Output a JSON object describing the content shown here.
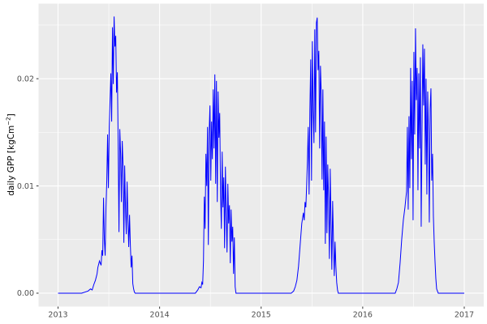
{
  "figure": {
    "ylabel_prefix": "daily GPP [kgCm",
    "ylabel_sup": "−2",
    "ylabel_suffix": "]"
  },
  "chart_data": {
    "type": "line",
    "title": "",
    "xlabel": "",
    "ylabel": "daily GPP [kgCm^-2]",
    "legend": "none",
    "grid": "major+minor",
    "panel_bg": "#EBEBEB",
    "grid_color": "#FFFFFF",
    "line_color": "#0000FF",
    "tick_mark_color": "#333333",
    "tick_label_color": "#4D4D4D",
    "xlim": [
      2012.808,
      2017.192
    ],
    "ylim": [
      -0.00125,
      0.027
    ],
    "x_ticks": {
      "values": [
        2013,
        2014,
        2015,
        2016,
        2017
      ],
      "labels": [
        "2013",
        "2014",
        "2015",
        "2016",
        "2017"
      ]
    },
    "y_ticks": {
      "values": [
        0,
        0.01,
        0.02
      ],
      "labels": [
        "0.00",
        "0.01",
        "0.02"
      ]
    },
    "x_minor": [
      2013.5,
      2014.5,
      2015.5,
      2016.5
    ],
    "y_minor": [
      0.005,
      0.015,
      0.025
    ],
    "series": [
      {
        "name": "daily GPP",
        "points": [
          [
            2013.0,
            0
          ],
          [
            2013.232,
            0
          ],
          [
            2013.296,
            0.0002
          ],
          [
            2013.32,
            0.0004
          ],
          [
            2013.336,
            0.0003
          ],
          [
            2013.352,
            0.0008
          ],
          [
            2013.368,
            0.0012
          ],
          [
            2013.384,
            0.0018
          ],
          [
            2013.392,
            0.0024
          ],
          [
            2013.408,
            0.003
          ],
          [
            2013.424,
            0.0026
          ],
          [
            2013.432,
            0.004
          ],
          [
            2013.44,
            0.0035
          ],
          [
            2013.448,
            0.0089
          ],
          [
            2013.456,
            0.005
          ],
          [
            2013.464,
            0.0035
          ],
          [
            2013.472,
            0.008
          ],
          [
            2013.48,
            0.0105
          ],
          [
            2013.488,
            0.0148
          ],
          [
            2013.496,
            0.0098
          ],
          [
            2013.504,
            0.0155
          ],
          [
            2013.512,
            0.018
          ],
          [
            2013.52,
            0.0205
          ],
          [
            2013.528,
            0.016
          ],
          [
            2013.536,
            0.0248
          ],
          [
            2013.544,
            0.0195
          ],
          [
            2013.552,
            0.0258
          ],
          [
            2013.56,
            0.023
          ],
          [
            2013.568,
            0.024
          ],
          [
            2013.576,
            0.0187
          ],
          [
            2013.584,
            0.0206
          ],
          [
            2013.592,
            0.014
          ],
          [
            2013.6,
            0.0057
          ],
          [
            2013.608,
            0.0153
          ],
          [
            2013.616,
            0.013
          ],
          [
            2013.624,
            0.0085
          ],
          [
            2013.632,
            0.0142
          ],
          [
            2013.64,
            0.012
          ],
          [
            2013.648,
            0.0047
          ],
          [
            2013.656,
            0.0119
          ],
          [
            2013.664,
            0.008
          ],
          [
            2013.672,
            0.0055
          ],
          [
            2013.68,
            0.0104
          ],
          [
            2013.688,
            0.007
          ],
          [
            2013.696,
            0.0043
          ],
          [
            2013.704,
            0.0073
          ],
          [
            2013.712,
            0.0045
          ],
          [
            2013.72,
            0.0024
          ],
          [
            2013.728,
            0.0035
          ],
          [
            2013.736,
            0.0009
          ],
          [
            2013.744,
            0.0004
          ],
          [
            2013.752,
            0.0001
          ],
          [
            2013.76,
            0
          ],
          [
            2014.352,
            0
          ],
          [
            2014.376,
            0.0003
          ],
          [
            2014.392,
            0.0006
          ],
          [
            2014.408,
            0.0005
          ],
          [
            2014.416,
            0.001
          ],
          [
            2014.424,
            0.0008
          ],
          [
            2014.432,
            0.003
          ],
          [
            2014.44,
            0.009
          ],
          [
            2014.448,
            0.006
          ],
          [
            2014.456,
            0.013
          ],
          [
            2014.464,
            0.01
          ],
          [
            2014.472,
            0.0155
          ],
          [
            2014.48,
            0.0045
          ],
          [
            2014.488,
            0.015
          ],
          [
            2014.496,
            0.0175
          ],
          [
            2014.504,
            0.0105
          ],
          [
            2014.512,
            0.016
          ],
          [
            2014.52,
            0.0125
          ],
          [
            2014.528,
            0.019
          ],
          [
            2014.536,
            0.0135
          ],
          [
            2014.544,
            0.0204
          ],
          [
            2014.552,
            0.0102
          ],
          [
            2014.56,
            0.0198
          ],
          [
            2014.568,
            0.0085
          ],
          [
            2014.576,
            0.0188
          ],
          [
            2014.584,
            0.0145
          ],
          [
            2014.592,
            0.0168
          ],
          [
            2014.6,
            0.0095
          ],
          [
            2014.608,
            0.006
          ],
          [
            2014.616,
            0.0132
          ],
          [
            2014.624,
            0.008
          ],
          [
            2014.632,
            0.0108
          ],
          [
            2014.64,
            0.0042
          ],
          [
            2014.648,
            0.0118
          ],
          [
            2014.656,
            0.0075
          ],
          [
            2014.664,
            0.0038
          ],
          [
            2014.672,
            0.0102
          ],
          [
            2014.68,
            0.0065
          ],
          [
            2014.688,
            0.0082
          ],
          [
            2014.696,
            0.0028
          ],
          [
            2014.704,
            0.0078
          ],
          [
            2014.712,
            0.0048
          ],
          [
            2014.72,
            0.0062
          ],
          [
            2014.728,
            0.0018
          ],
          [
            2014.736,
            0.0052
          ],
          [
            2014.744,
            0.0006
          ],
          [
            2014.752,
            0
          ],
          [
            2015.296,
            0
          ],
          [
            2015.32,
            0.0002
          ],
          [
            2015.336,
            0.0006
          ],
          [
            2015.352,
            0.0012
          ],
          [
            2015.368,
            0.0025
          ],
          [
            2015.384,
            0.0045
          ],
          [
            2015.4,
            0.0065
          ],
          [
            2015.416,
            0.0075
          ],
          [
            2015.424,
            0.0068
          ],
          [
            2015.432,
            0.0085
          ],
          [
            2015.44,
            0.008
          ],
          [
            2015.448,
            0.01
          ],
          [
            2015.456,
            0.0125
          ],
          [
            2015.464,
            0.0155
          ],
          [
            2015.472,
            0.0092
          ],
          [
            2015.48,
            0.017
          ],
          [
            2015.488,
            0.0218
          ],
          [
            2015.496,
            0.0105
          ],
          [
            2015.504,
            0.0235
          ],
          [
            2015.512,
            0.017
          ],
          [
            2015.52,
            0.014
          ],
          [
            2015.528,
            0.0246
          ],
          [
            2015.536,
            0.015
          ],
          [
            2015.544,
            0.0252
          ],
          [
            2015.552,
            0.0257
          ],
          [
            2015.56,
            0.0208
          ],
          [
            2015.568,
            0.0226
          ],
          [
            2015.576,
            0.0135
          ],
          [
            2015.584,
            0.0212
          ],
          [
            2015.592,
            0.0186
          ],
          [
            2015.6,
            0.0106
          ],
          [
            2015.608,
            0.019
          ],
          [
            2015.616,
            0.0096
          ],
          [
            2015.624,
            0.016
          ],
          [
            2015.632,
            0.0046
          ],
          [
            2015.64,
            0.0146
          ],
          [
            2015.648,
            0.0056
          ],
          [
            2015.656,
            0.012
          ],
          [
            2015.664,
            0.0088
          ],
          [
            2015.672,
            0.0032
          ],
          [
            2015.68,
            0.0116
          ],
          [
            2015.688,
            0.0066
          ],
          [
            2015.696,
            0.0022
          ],
          [
            2015.704,
            0.0086
          ],
          [
            2015.712,
            0.005
          ],
          [
            2015.72,
            0.0016
          ],
          [
            2015.728,
            0.0048
          ],
          [
            2015.736,
            0.0025
          ],
          [
            2015.744,
            0.001
          ],
          [
            2015.752,
            0.0003
          ],
          [
            2015.76,
            0
          ],
          [
            2016.32,
            0
          ],
          [
            2016.336,
            0.0004
          ],
          [
            2016.352,
            0.001
          ],
          [
            2016.368,
            0.0028
          ],
          [
            2016.384,
            0.005
          ],
          [
            2016.4,
            0.0068
          ],
          [
            2016.416,
            0.008
          ],
          [
            2016.432,
            0.0095
          ],
          [
            2016.44,
            0.0155
          ],
          [
            2016.448,
            0.0078
          ],
          [
            2016.456,
            0.0165
          ],
          [
            2016.464,
            0.0098
          ],
          [
            2016.472,
            0.021
          ],
          [
            2016.48,
            0.0125
          ],
          [
            2016.488,
            0.0198
          ],
          [
            2016.496,
            0.0068
          ],
          [
            2016.504,
            0.0225
          ],
          [
            2016.512,
            0.0148
          ],
          [
            2016.52,
            0.0247
          ],
          [
            2016.528,
            0.018
          ],
          [
            2016.536,
            0.021
          ],
          [
            2016.544,
            0.0096
          ],
          [
            2016.552,
            0.0205
          ],
          [
            2016.56,
            0.0135
          ],
          [
            2016.568,
            0.022
          ],
          [
            2016.576,
            0.0062
          ],
          [
            2016.584,
            0.015
          ],
          [
            2016.592,
            0.0232
          ],
          [
            2016.6,
            0.0175
          ],
          [
            2016.608,
            0.0228
          ],
          [
            2016.616,
            0.012
          ],
          [
            2016.624,
            0.02
          ],
          [
            2016.632,
            0.0092
          ],
          [
            2016.64,
            0.0188
          ],
          [
            2016.648,
            0.015
          ],
          [
            2016.656,
            0.0066
          ],
          [
            2016.664,
            0.0172
          ],
          [
            2016.672,
            0.0191
          ],
          [
            2016.68,
            0.0105
          ],
          [
            2016.688,
            0.013
          ],
          [
            2016.696,
            0.0072
          ],
          [
            2016.704,
            0.0048
          ],
          [
            2016.712,
            0.003
          ],
          [
            2016.72,
            0.0014
          ],
          [
            2016.728,
            0.0004
          ],
          [
            2016.744,
            0
          ],
          [
            2017.0,
            0
          ]
        ]
      }
    ]
  }
}
